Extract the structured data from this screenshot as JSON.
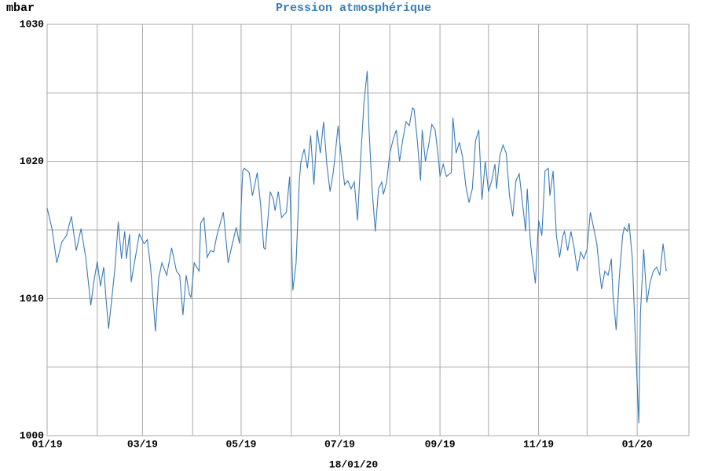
{
  "chart_data": {
    "type": "line",
    "title": "Pression atmosphérique",
    "y_label": "mbar",
    "footer": "18/01/20",
    "title_color": "#3a7fb5",
    "grid": true,
    "xlim": [
      0,
      397
    ],
    "xticks": [
      {
        "value": 0,
        "label": "01/19"
      },
      {
        "value": 59,
        "label": "03/19"
      },
      {
        "value": 120,
        "label": "05/19"
      },
      {
        "value": 181,
        "label": "07/19"
      },
      {
        "value": 243,
        "label": "09/19"
      },
      {
        "value": 304,
        "label": "11/19"
      },
      {
        "value": 365,
        "label": "01/20"
      }
    ],
    "minor_xticks": [
      31,
      90,
      151,
      212,
      273,
      334
    ],
    "ylim": [
      1000,
      1030
    ],
    "yticks": [
      1000,
      1010,
      1020,
      1030
    ],
    "minor_yticks": [
      1005,
      1015,
      1025
    ],
    "x": [
      0,
      3,
      6,
      9,
      12,
      15,
      18,
      21,
      24,
      27,
      29,
      31,
      33,
      35,
      36,
      38,
      40,
      42,
      44,
      46,
      48,
      49,
      51,
      52,
      54,
      57,
      60,
      62,
      64,
      67,
      69,
      71,
      74,
      77,
      80,
      82,
      84,
      86,
      88,
      89,
      91,
      94,
      95,
      97,
      99,
      101,
      103,
      105,
      109,
      112,
      114,
      117,
      119,
      121,
      122,
      125,
      127,
      130,
      132,
      134,
      135,
      138,
      140,
      141,
      143,
      145,
      148,
      150,
      152,
      154,
      156,
      157,
      159,
      161,
      163,
      165,
      167,
      169,
      171,
      173,
      175,
      177,
      180,
      182,
      184,
      186,
      188,
      190,
      192,
      194,
      196,
      198,
      199,
      201,
      203,
      205,
      207,
      208,
      210,
      212,
      214,
      216,
      218,
      220,
      222,
      224,
      226,
      227,
      229,
      231,
      232,
      234,
      236,
      238,
      240,
      242,
      243,
      245,
      247,
      250,
      251,
      253,
      255,
      257,
      259,
      261,
      263,
      265,
      267,
      269,
      271,
      273,
      275,
      277,
      278,
      280,
      282,
      284,
      286,
      288,
      290,
      292,
      294,
      296,
      297,
      299,
      302,
      304,
      306,
      308,
      310,
      311,
      313,
      315,
      317,
      319,
      320,
      322,
      324,
      326,
      328,
      330,
      332,
      334,
      336,
      338,
      340,
      342,
      343,
      345,
      347,
      349,
      350,
      352,
      354,
      356,
      357,
      359,
      360,
      362,
      364,
      366,
      367,
      369,
      371,
      373,
      375,
      377,
      379,
      381,
      383
    ],
    "series": [
      {
        "color": "#3b7cb8",
        "values": [
          1016.6,
          1015.1,
          1012.6,
          1014.1,
          1014.6,
          1016.0,
          1013.5,
          1015.1,
          1012.9,
          1009.5,
          1011.3,
          1012.7,
          1010.9,
          1012.3,
          1010.6,
          1007.8,
          1010.0,
          1012.3,
          1015.6,
          1012.9,
          1014.9,
          1012.9,
          1014.7,
          1011.2,
          1012.6,
          1014.7,
          1014.0,
          1014.3,
          1012.3,
          1007.6,
          1011.5,
          1012.6,
          1011.7,
          1013.7,
          1012.0,
          1011.7,
          1008.8,
          1011.7,
          1010.3,
          1010.1,
          1012.6,
          1012.0,
          1015.5,
          1015.9,
          1013.0,
          1013.5,
          1013.4,
          1014.6,
          1016.3,
          1012.6,
          1013.7,
          1015.2,
          1014.0,
          1019.3,
          1019.5,
          1019.2,
          1017.5,
          1019.2,
          1016.9,
          1013.7,
          1013.6,
          1017.8,
          1017.2,
          1016.4,
          1017.8,
          1015.9,
          1016.3,
          1018.9,
          1010.6,
          1012.6,
          1018.6,
          1020.0,
          1020.9,
          1019.5,
          1021.9,
          1018.3,
          1022.3,
          1020.6,
          1022.9,
          1019.8,
          1017.8,
          1019.2,
          1022.6,
          1020.3,
          1018.3,
          1018.6,
          1018.0,
          1018.5,
          1015.7,
          1020.3,
          1024.3,
          1026.6,
          1022.6,
          1018.0,
          1014.9,
          1018.0,
          1018.5,
          1017.6,
          1018.5,
          1020.6,
          1021.6,
          1022.3,
          1020.0,
          1021.6,
          1022.9,
          1022.6,
          1023.9,
          1023.8,
          1021.5,
          1018.6,
          1022.3,
          1020.0,
          1021.2,
          1022.7,
          1022.3,
          1020.3,
          1018.9,
          1019.8,
          1018.9,
          1019.2,
          1023.2,
          1020.6,
          1021.4,
          1020.3,
          1018.2,
          1017.0,
          1018.0,
          1021.5,
          1022.3,
          1017.2,
          1020.0,
          1017.8,
          1018.6,
          1019.8,
          1018.0,
          1020.4,
          1021.2,
          1020.6,
          1017.5,
          1016.0,
          1018.6,
          1019.1,
          1017.0,
          1014.9,
          1018.0,
          1014.0,
          1011.1,
          1015.7,
          1014.6,
          1019.3,
          1019.5,
          1017.5,
          1019.3,
          1014.6,
          1013.0,
          1014.6,
          1014.9,
          1013.5,
          1014.9,
          1013.7,
          1012.0,
          1013.4,
          1012.9,
          1013.6,
          1016.3,
          1015.2,
          1014.0,
          1011.7,
          1010.7,
          1012.0,
          1011.7,
          1012.9,
          1010.3,
          1007.7,
          1011.7,
          1014.6,
          1015.2,
          1014.9,
          1015.5,
          1012.9,
          1006.6,
          1000.9,
          1008.9,
          1013.6,
          1009.7,
          1011.2,
          1012.0,
          1012.3,
          1011.7,
          1014.0,
          1012.0
        ]
      }
    ]
  }
}
